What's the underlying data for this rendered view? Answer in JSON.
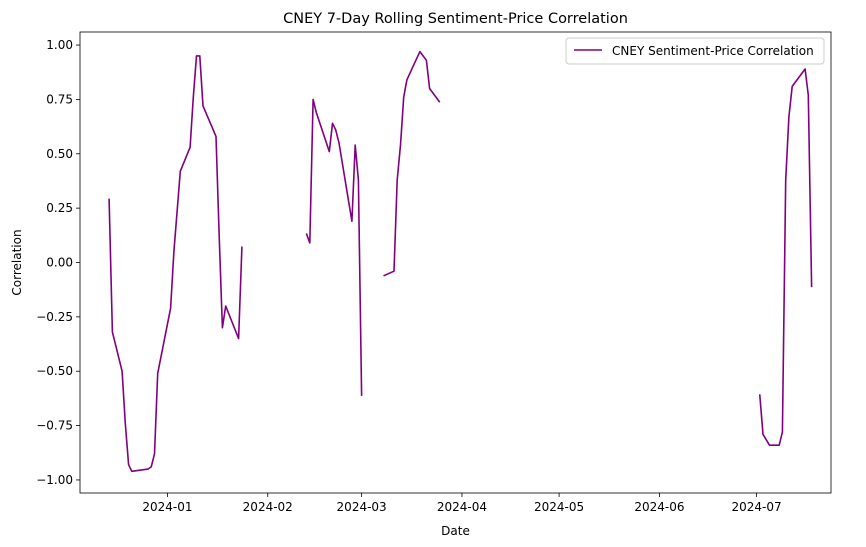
{
  "chart_data": {
    "type": "line",
    "title": "CNEY 7-Day Rolling Sentiment-Price Correlation",
    "xlabel": "Date",
    "ylabel": "Correlation",
    "x_range": [
      "2023-12-05",
      "2024-07-24"
    ],
    "ylim": [
      -1.06,
      1.06
    ],
    "x_ticks": [
      "2024-01-01",
      "2024-02-01",
      "2024-03-01",
      "2024-04-01",
      "2024-05-01",
      "2024-06-01",
      "2024-07-01"
    ],
    "x_tick_labels": [
      "2024-01",
      "2024-02",
      "2024-03",
      "2024-04",
      "2024-05",
      "2024-06",
      "2024-07"
    ],
    "y_ticks": [
      -1.0,
      -0.75,
      -0.5,
      -0.25,
      0.0,
      0.25,
      0.5,
      0.75,
      1.0
    ],
    "y_tick_labels": [
      "−1.00",
      "−0.75",
      "−0.50",
      "−0.25",
      "0.00",
      "0.25",
      "0.50",
      "0.75",
      "1.00"
    ],
    "grid": false,
    "legend_position": "top-right",
    "color": "#800080",
    "series": [
      {
        "name": "CNEY Sentiment-Price Correlation",
        "segments": [
          [
            [
              "2023-12-14",
              0.29
            ],
            [
              "2023-12-15",
              -0.32
            ],
            [
              "2023-12-18",
              -0.5
            ],
            [
              "2023-12-19",
              -0.74
            ],
            [
              "2023-12-20",
              -0.93
            ],
            [
              "2023-12-21",
              -0.96
            ],
            [
              "2023-12-26",
              -0.95
            ],
            [
              "2023-12-27",
              -0.94
            ],
            [
              "2023-12-28",
              -0.88
            ],
            [
              "2023-12-29",
              -0.51
            ],
            [
              "2024-01-02",
              -0.21
            ],
            [
              "2024-01-03",
              0.05
            ],
            [
              "2024-01-05",
              0.42
            ],
            [
              "2024-01-08",
              0.53
            ],
            [
              "2024-01-09",
              0.76
            ],
            [
              "2024-01-10",
              0.95
            ],
            [
              "2024-01-11",
              0.95
            ],
            [
              "2024-01-12",
              0.72
            ],
            [
              "2024-01-16",
              0.58
            ],
            [
              "2024-01-17",
              0.12
            ],
            [
              "2024-01-18",
              -0.3
            ],
            [
              "2024-01-19",
              -0.2
            ],
            [
              "2024-01-23",
              -0.35
            ],
            [
              "2024-01-24",
              0.07
            ]
          ],
          [
            [
              "2024-02-13",
              0.13
            ],
            [
              "2024-02-14",
              0.09
            ],
            [
              "2024-02-15",
              0.75
            ],
            [
              "2024-02-16",
              0.69
            ],
            [
              "2024-02-20",
              0.51
            ],
            [
              "2024-02-21",
              0.64
            ],
            [
              "2024-02-22",
              0.61
            ],
            [
              "2024-02-23",
              0.55
            ],
            [
              "2024-02-27",
              0.19
            ],
            [
              "2024-02-28",
              0.54
            ],
            [
              "2024-02-29",
              0.38
            ],
            [
              "2024-03-01",
              -0.61
            ]
          ],
          [
            [
              "2024-03-08",
              -0.06
            ],
            [
              "2024-03-11",
              -0.04
            ],
            [
              "2024-03-12",
              0.38
            ],
            [
              "2024-03-13",
              0.54
            ],
            [
              "2024-03-14",
              0.76
            ],
            [
              "2024-03-15",
              0.84
            ],
            [
              "2024-03-19",
              0.97
            ],
            [
              "2024-03-21",
              0.93
            ],
            [
              "2024-03-22",
              0.8
            ],
            [
              "2024-03-25",
              0.74
            ]
          ],
          [
            [
              "2024-07-02",
              -0.61
            ],
            [
              "2024-07-03",
              -0.79
            ],
            [
              "2024-07-05",
              -0.84
            ],
            [
              "2024-07-08",
              -0.84
            ],
            [
              "2024-07-09",
              -0.78
            ],
            [
              "2024-07-10",
              0.38
            ],
            [
              "2024-07-11",
              0.67
            ],
            [
              "2024-07-12",
              0.81
            ],
            [
              "2024-07-16",
              0.89
            ],
            [
              "2024-07-17",
              0.77
            ],
            [
              "2024-07-18",
              -0.11
            ]
          ]
        ]
      }
    ]
  }
}
